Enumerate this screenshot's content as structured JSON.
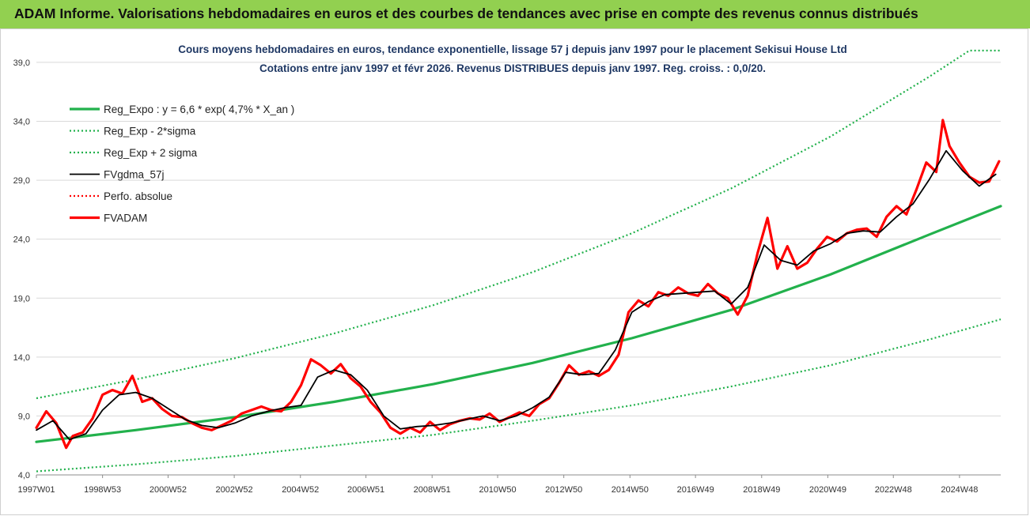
{
  "banner": {
    "title": "ADAM Informe. Valorisations hebdomadaires en euros et des courbes de tendances avec prise en compte des revenus connus distribués",
    "color": "#92d050"
  },
  "chart_data": {
    "type": "line",
    "title": "Cours moyens hebdomadaires en euros, tendance exponentielle, lissage 57 j depuis janv 1997 pour le placement Sekisui House Ltd",
    "subtitle": "Cotations entre janv 1997 et févr 2026. Revenus DISTRIBUES depuis janv 1997. Reg. croiss. : 0,0/20.",
    "xlabel": "",
    "ylabel": "",
    "x_ticks": [
      "1997W01",
      "1998W53",
      "2000W52",
      "2002W52",
      "2004W52",
      "2006W51",
      "2008W51",
      "2010W50",
      "2012W50",
      "2014W50",
      "2016W49",
      "2018W49",
      "2020W49",
      "2022W48",
      "2024W48"
    ],
    "x_range": [
      1997.0,
      2026.15
    ],
    "y_ticks": [
      "4,0",
      "9,0",
      "14,0",
      "19,0",
      "24,0",
      "29,0",
      "34,0",
      "39,0"
    ],
    "ylim": [
      4,
      40
    ],
    "grid": true,
    "legend_position": "top-left",
    "series": [
      {
        "name": "Reg_Expo : y = 6,6 * exp( 4,7% *  X_an )",
        "color": "#22b14c",
        "style": "solid-thick",
        "x": [
          1997,
          2000,
          2003,
          2006,
          2009,
          2012,
          2015,
          2018,
          2021,
          2024,
          2026.15
        ],
        "y": [
          6.8,
          7.8,
          8.9,
          10.2,
          11.7,
          13.5,
          15.6,
          18.0,
          21.0,
          24.4,
          26.8
        ]
      },
      {
        "name": "Reg_Exp - 2*sigma",
        "color": "#22b14c",
        "style": "dotted",
        "x": [
          1997,
          2000,
          2003,
          2006,
          2009,
          2012,
          2015,
          2018,
          2021,
          2024,
          2026.15
        ],
        "y": [
          4.3,
          4.9,
          5.6,
          6.5,
          7.4,
          8.6,
          9.9,
          11.5,
          13.3,
          15.5,
          17.2
        ]
      },
      {
        "name": "Reg_Exp + 2 sigma",
        "color": "#22b14c",
        "style": "dotted",
        "x": [
          1997,
          2000,
          2003,
          2006,
          2009,
          2012,
          2015,
          2018,
          2021,
          2024,
          2025.2,
          2026.15
        ],
        "y": [
          10.5,
          12.1,
          13.9,
          16.0,
          18.4,
          21.2,
          24.5,
          28.3,
          32.7,
          37.8,
          40.0,
          40.0
        ]
      },
      {
        "name": "FVgdma_57j",
        "color": "#000000",
        "style": "solid",
        "x": [
          1997,
          1997.5,
          1998,
          1998.5,
          1999,
          1999.5,
          2000,
          2000.5,
          2001,
          2001.5,
          2002,
          2002.5,
          2003,
          2003.5,
          2004,
          2004.5,
          2005,
          2005.5,
          2006,
          2006.5,
          2007,
          2007.5,
          2008,
          2008.5,
          2009,
          2009.5,
          2010,
          2010.5,
          2011,
          2011.5,
          2012,
          2012.5,
          2013,
          2013.5,
          2014,
          2014.5,
          2015,
          2015.5,
          2016,
          2016.5,
          2017,
          2017.5,
          2018,
          2018.5,
          2019,
          2019.5,
          2020,
          2020.5,
          2021,
          2021.5,
          2022,
          2022.5,
          2023,
          2023.5,
          2024,
          2024.5,
          2025,
          2025.5,
          2026
        ],
        "y": [
          7.8,
          8.6,
          7.0,
          7.5,
          9.5,
          10.8,
          11.0,
          10.5,
          9.6,
          8.7,
          8.2,
          8.0,
          8.4,
          9.0,
          9.4,
          9.7,
          9.9,
          12.3,
          12.9,
          12.5,
          11.2,
          9.0,
          7.9,
          8.1,
          8.2,
          8.4,
          8.7,
          9.0,
          8.6,
          9.0,
          9.7,
          10.6,
          12.7,
          12.5,
          12.6,
          14.6,
          17.8,
          18.7,
          19.3,
          19.4,
          19.5,
          19.6,
          18.5,
          19.9,
          23.5,
          22.2,
          21.8,
          23.0,
          23.6,
          24.5,
          24.7,
          24.6,
          25.9,
          27.0,
          29.1,
          31.5,
          29.8,
          28.5,
          29.5
        ]
      },
      {
        "name": "Perfo. absolue",
        "color": "#ff0000",
        "style": "dotted",
        "x": [],
        "y": []
      },
      {
        "name": "FVADAM",
        "color": "#ff0000",
        "style": "solid-thick",
        "x": [
          1997,
          1997.3,
          1997.6,
          1997.9,
          1998.1,
          1998.4,
          1998.7,
          1999.0,
          1999.3,
          1999.6,
          1999.9,
          2000.2,
          2000.5,
          2000.8,
          2001.1,
          2001.4,
          2001.7,
          2002.0,
          2002.3,
          2002.6,
          2002.9,
          2003.2,
          2003.5,
          2003.8,
          2004.1,
          2004.4,
          2004.7,
          2005.0,
          2005.3,
          2005.6,
          2005.9,
          2006.2,
          2006.5,
          2006.8,
          2007.1,
          2007.4,
          2007.7,
          2008.0,
          2008.3,
          2008.6,
          2008.9,
          2009.2,
          2009.5,
          2009.8,
          2010.1,
          2010.4,
          2010.7,
          2011.0,
          2011.3,
          2011.6,
          2011.9,
          2012.2,
          2012.5,
          2012.8,
          2013.1,
          2013.4,
          2013.7,
          2014.0,
          2014.3,
          2014.6,
          2014.9,
          2015.2,
          2015.5,
          2015.8,
          2016.1,
          2016.4,
          2016.7,
          2017.0,
          2017.3,
          2017.6,
          2017.9,
          2018.2,
          2018.5,
          2018.8,
          2019.1,
          2019.4,
          2019.7,
          2020.0,
          2020.3,
          2020.6,
          2020.9,
          2021.2,
          2021.5,
          2021.8,
          2022.1,
          2022.4,
          2022.7,
          2023.0,
          2023.3,
          2023.6,
          2023.9,
          2024.2,
          2024.4,
          2024.6,
          2024.9,
          2025.2,
          2025.5,
          2025.8,
          2026.1
        ],
        "y": [
          8.0,
          9.4,
          8.4,
          6.3,
          7.3,
          7.6,
          8.8,
          10.8,
          11.2,
          10.9,
          12.4,
          10.2,
          10.5,
          9.6,
          9.0,
          8.9,
          8.4,
          8.0,
          7.8,
          8.2,
          8.6,
          9.2,
          9.5,
          9.8,
          9.5,
          9.4,
          10.2,
          11.6,
          13.8,
          13.3,
          12.6,
          13.4,
          12.2,
          11.5,
          10.2,
          9.3,
          8.0,
          7.5,
          8.0,
          7.6,
          8.5,
          7.8,
          8.3,
          8.6,
          8.8,
          8.7,
          9.2,
          8.5,
          8.9,
          9.3,
          9.0,
          10.0,
          10.5,
          11.8,
          13.3,
          12.5,
          12.8,
          12.4,
          12.9,
          14.2,
          17.8,
          18.8,
          18.3,
          19.5,
          19.2,
          19.9,
          19.4,
          19.2,
          20.2,
          19.4,
          19.0,
          17.6,
          19.2,
          22.8,
          25.8,
          21.5,
          23.4,
          21.5,
          22.0,
          23.2,
          24.2,
          23.8,
          24.5,
          24.8,
          24.9,
          24.2,
          25.9,
          26.8,
          26.1,
          28.2,
          30.5,
          29.7,
          34.1,
          31.9,
          30.5,
          29.3,
          28.8,
          28.9,
          30.6
        ]
      }
    ]
  }
}
